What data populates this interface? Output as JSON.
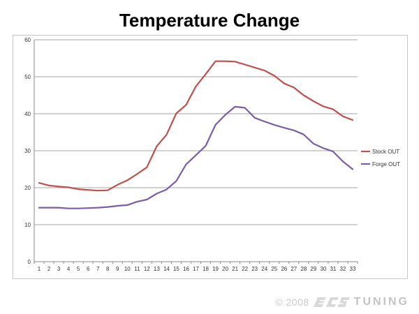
{
  "page": {
    "title": "Temperature Change"
  },
  "chart_data": {
    "type": "line",
    "title": "Temperature Change",
    "xlabel": "",
    "ylabel": "",
    "x": [
      1,
      2,
      3,
      4,
      5,
      6,
      7,
      8,
      9,
      10,
      11,
      12,
      13,
      14,
      15,
      16,
      17,
      18,
      19,
      20,
      21,
      22,
      23,
      24,
      25,
      26,
      27,
      28,
      29,
      30,
      31,
      32,
      33
    ],
    "ylim": [
      0,
      60
    ],
    "yticks": [
      0,
      10,
      20,
      30,
      40,
      50,
      60
    ],
    "grid": {
      "horizontal": true,
      "vertical": false
    },
    "legend_position": "right",
    "series": [
      {
        "name": "Stock OUT",
        "color": "#c0504d",
        "values": [
          21.3,
          20.6,
          20.3,
          20.1,
          19.6,
          19.4,
          19.2,
          19.3,
          20.8,
          22.0,
          23.7,
          25.5,
          31.2,
          34.3,
          40.1,
          42.4,
          47.4,
          50.7,
          54.2,
          54.2,
          54.1,
          53.3,
          52.5,
          51.7,
          50.3,
          48.2,
          47.1,
          45.0,
          43.4,
          42.0,
          41.2,
          39.3,
          38.3
        ]
      },
      {
        "name": "Forge OUT",
        "color": "#7b5ea7",
        "values": [
          14.6,
          14.6,
          14.6,
          14.4,
          14.4,
          14.5,
          14.6,
          14.8,
          15.1,
          15.3,
          16.2,
          16.8,
          18.4,
          19.5,
          21.8,
          26.3,
          28.8,
          31.3,
          37.0,
          39.7,
          41.9,
          41.6,
          38.9,
          37.9,
          37.0,
          36.2,
          35.5,
          34.4,
          31.9,
          30.7,
          29.8,
          27.1,
          25.0
        ]
      }
    ]
  },
  "watermark": {
    "copyright": "© 2008",
    "brand": "TUNING",
    "logo": "ECS"
  }
}
